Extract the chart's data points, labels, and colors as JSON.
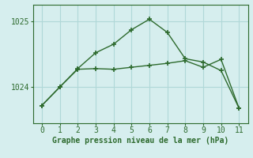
{
  "line1_x": [
    0,
    1,
    2,
    3,
    4,
    5,
    6,
    7,
    8,
    9,
    10,
    11
  ],
  "line1_y": [
    1023.72,
    1024.0,
    1024.28,
    1024.52,
    1024.65,
    1024.87,
    1025.03,
    1024.83,
    1024.43,
    1024.38,
    1024.25,
    1023.68
  ],
  "line2_x": [
    0,
    1,
    2,
    3,
    4,
    5,
    6,
    7,
    8,
    9,
    10,
    11
  ],
  "line2_y": [
    1023.72,
    1024.0,
    1024.27,
    1024.28,
    1024.27,
    1024.3,
    1024.33,
    1024.36,
    1024.4,
    1024.3,
    1024.42,
    1023.68
  ],
  "line_color": "#2d6a2d",
  "bg_color": "#d6eeee",
  "grid_color": "#b0d8d8",
  "xlabel": "Graphe pression niveau de la mer (hPa)",
  "yticks": [
    1024,
    1025
  ],
  "xticks": [
    0,
    1,
    2,
    3,
    4,
    5,
    6,
    7,
    8,
    9,
    10,
    11
  ],
  "ylim": [
    1023.45,
    1025.25
  ],
  "xlim": [
    -0.5,
    11.5
  ]
}
